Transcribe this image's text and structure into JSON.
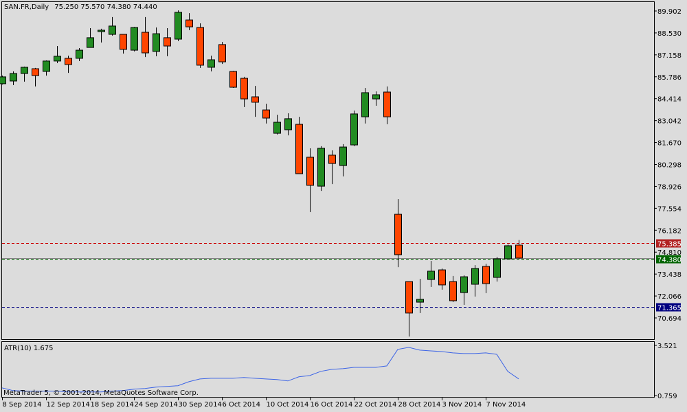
{
  "chart_data": {
    "type": "candlestick",
    "title": "SAN.FR,Daily",
    "ohlc_readout": "75.250 75.570 74.380 74.440",
    "colors": {
      "bull": "#228b22",
      "bear": "#ff4500",
      "background": "#dcdcdc",
      "ask_line": "#cc0000",
      "bid_line": "#006400",
      "low_line": "#000080",
      "atr_line": "#3c64e6"
    },
    "ylim": [
      70.694,
      89.902
    ],
    "y_ticks": [
      "89.902",
      "88.530",
      "87.158",
      "85.786",
      "84.414",
      "83.042",
      "81.670",
      "80.298",
      "78.926",
      "77.554",
      "76.182",
      "74.810",
      "73.438",
      "72.066",
      "70.694"
    ],
    "x_ticks": [
      {
        "index": 0,
        "label": "8 Sep 2014"
      },
      {
        "index": 4,
        "label": "12 Sep 2014"
      },
      {
        "index": 8,
        "label": "18 Sep 2014"
      },
      {
        "index": 12,
        "label": "24 Sep 2014"
      },
      {
        "index": 16,
        "label": "30 Sep 2014"
      },
      {
        "index": 20,
        "label": "6 Oct 2014"
      },
      {
        "index": 24,
        "label": "10 Oct 2014"
      },
      {
        "index": 28,
        "label": "16 Oct 2014"
      },
      {
        "index": 32,
        "label": "22 Oct 2014"
      },
      {
        "index": 36,
        "label": "28 Oct 2014"
      },
      {
        "index": 40,
        "label": "3 Nov 2014"
      },
      {
        "index": 44,
        "label": "7 Nov 2014"
      }
    ],
    "candles": [
      [
        85.35,
        85.86,
        85.3,
        85.78
      ],
      [
        85.52,
        86.12,
        85.26,
        85.99
      ],
      [
        85.99,
        86.42,
        85.48,
        86.38
      ],
      [
        86.29,
        86.34,
        85.18,
        85.86
      ],
      [
        86.12,
        86.81,
        85.86,
        86.77
      ],
      [
        86.77,
        87.71,
        86.64,
        87.07
      ],
      [
        86.94,
        87.11,
        86.03,
        86.55
      ],
      [
        86.94,
        87.58,
        86.77,
        87.45
      ],
      [
        87.62,
        88.83,
        87.62,
        88.23
      ],
      [
        88.61,
        88.79,
        87.93,
        88.7
      ],
      [
        88.44,
        89.52,
        88.36,
        88.96
      ],
      [
        88.44,
        88.44,
        87.24,
        87.5
      ],
      [
        87.45,
        88.91,
        87.37,
        88.87
      ],
      [
        88.57,
        89.52,
        87.02,
        87.28
      ],
      [
        87.37,
        88.87,
        87.07,
        88.48
      ],
      [
        88.23,
        88.83,
        87.07,
        87.71
      ],
      [
        88.14,
        89.94,
        88.01,
        89.82
      ],
      [
        89.34,
        89.77,
        88.7,
        88.91
      ],
      [
        88.87,
        89.13,
        86.34,
        86.51
      ],
      [
        86.38,
        87.11,
        86.12,
        86.85
      ],
      [
        87.8,
        87.97,
        86.59,
        86.72
      ],
      [
        86.12,
        86.16,
        85.09,
        85.13
      ],
      [
        85.69,
        85.78,
        83.89,
        84.4
      ],
      [
        84.53,
        85.22,
        83.28,
        84.19
      ],
      [
        83.71,
        84.1,
        82.86,
        83.2
      ],
      [
        82.25,
        83.41,
        82.17,
        82.94
      ],
      [
        82.47,
        83.5,
        82.12,
        83.16
      ],
      [
        82.81,
        83.28,
        79.72,
        79.72
      ],
      [
        80.75,
        81.31,
        77.31,
        78.99
      ],
      [
        78.94,
        81.44,
        78.64,
        81.31
      ],
      [
        80.88,
        81.18,
        79.07,
        80.36
      ],
      [
        80.23,
        81.57,
        79.55,
        81.39
      ],
      [
        81.52,
        83.67,
        81.44,
        83.46
      ],
      [
        83.28,
        85.09,
        82.86,
        84.79
      ],
      [
        84.4,
        84.87,
        83.97,
        84.66
      ],
      [
        84.83,
        85.18,
        82.81,
        83.28
      ],
      [
        77.18,
        78.13,
        73.87,
        74.65
      ],
      [
        72.97,
        72.97,
        69.53,
        71.0
      ],
      [
        71.68,
        73.14,
        71.0,
        71.86
      ],
      [
        73.1,
        74.26,
        72.63,
        73.62
      ],
      [
        73.7,
        73.79,
        72.46,
        72.76
      ],
      [
        72.97,
        73.32,
        71.68,
        71.77
      ],
      [
        72.28,
        73.36,
        71.51,
        73.27
      ],
      [
        72.8,
        74.0,
        72.03,
        73.79
      ],
      [
        73.92,
        74.09,
        72.24,
        72.84
      ],
      [
        73.23,
        74.52,
        72.97,
        74.39
      ],
      [
        74.39,
        75.29,
        74.39,
        75.21
      ],
      [
        75.25,
        75.57,
        74.38,
        74.44
      ]
    ],
    "levels": [
      {
        "name": "ask",
        "value": 75.385,
        "label": "75.385"
      },
      {
        "name": "bid",
        "value": 74.38,
        "label": "74.380"
      },
      {
        "name": "low",
        "value": 71.365,
        "label": "71.365"
      }
    ],
    "indicator": {
      "label": "ATR(10) 1.675",
      "ylim": [
        0.759,
        3.521
      ],
      "y_ticks": [
        "3.521",
        "0.759"
      ],
      "values": [
        1.18,
        1.03,
        1.0,
        1.0,
        1.0,
        1.0,
        0.96,
        0.96,
        0.96,
        0.96,
        1.0,
        1.03,
        1.11,
        1.15,
        1.22,
        1.26,
        1.3,
        1.52,
        1.67,
        1.71,
        1.71,
        1.71,
        1.75,
        1.71,
        1.67,
        1.64,
        1.56,
        1.79,
        1.86,
        2.09,
        2.2,
        2.24,
        2.31,
        2.31,
        2.31,
        2.39,
        3.3,
        3.41,
        3.26,
        3.22,
        3.18,
        3.11,
        3.07,
        3.07,
        3.11,
        3.03,
        2.09,
        1.675
      ]
    },
    "copyright": "MetaTrader 5, © 2001-2014, MetaQuotes Software Corp."
  }
}
